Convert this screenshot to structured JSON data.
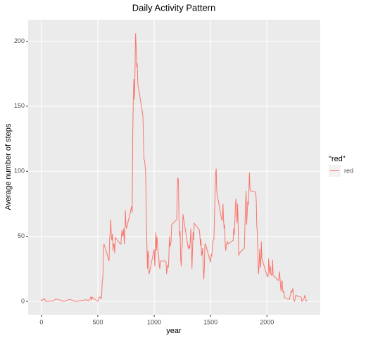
{
  "chart_data": {
    "type": "line",
    "title": "Daily Activity Pattern",
    "x_label": "year",
    "y_label": "Average number of steps",
    "legend_title": "\"red\"",
    "xlim": [
      -117.75,
      2472.75
    ],
    "xticks": [
      0,
      500,
      1000,
      1500,
      2000
    ],
    "ylim": [
      -10.3,
      216.5
    ],
    "yticks": [
      0,
      50,
      100,
      150,
      200
    ],
    "grid": true,
    "x": [
      0,
      5,
      25,
      40,
      100,
      130,
      200,
      250,
      300,
      320,
      400,
      420,
      440,
      445,
      450,
      500,
      510,
      520,
      530,
      535,
      540,
      545,
      550,
      555,
      600,
      605,
      610,
      615,
      620,
      625,
      630,
      635,
      640,
      645,
      650,
      655,
      700,
      705,
      710,
      715,
      720,
      725,
      730,
      735,
      740,
      745,
      750,
      755,
      800,
      805,
      810,
      815,
      820,
      825,
      830,
      835,
      840,
      845,
      850,
      855,
      900,
      905,
      910,
      915,
      920,
      925,
      930,
      935,
      940,
      945,
      950,
      955,
      1000,
      1005,
      1010,
      1015,
      1020,
      1025,
      1030,
      1035,
      1040,
      1045,
      1050,
      1055,
      1100,
      1105,
      1110,
      1115,
      1120,
      1125,
      1130,
      1135,
      1140,
      1145,
      1150,
      1155,
      1200,
      1205,
      1210,
      1215,
      1220,
      1225,
      1230,
      1235,
      1240,
      1245,
      1250,
      1255,
      1300,
      1305,
      1310,
      1315,
      1320,
      1325,
      1330,
      1335,
      1340,
      1345,
      1350,
      1355,
      1400,
      1405,
      1410,
      1415,
      1420,
      1425,
      1430,
      1435,
      1440,
      1445,
      1450,
      1455,
      1500,
      1505,
      1510,
      1515,
      1520,
      1525,
      1530,
      1535,
      1540,
      1545,
      1550,
      1555,
      1600,
      1605,
      1610,
      1615,
      1620,
      1625,
      1630,
      1635,
      1640,
      1645,
      1650,
      1655,
      1700,
      1705,
      1710,
      1715,
      1720,
      1725,
      1730,
      1735,
      1740,
      1745,
      1750,
      1755,
      1800,
      1805,
      1810,
      1815,
      1820,
      1825,
      1830,
      1835,
      1840,
      1845,
      1850,
      1855,
      1900,
      1905,
      1910,
      1915,
      1920,
      1925,
      1930,
      1935,
      1940,
      1945,
      1950,
      1955,
      2000,
      2005,
      2010,
      2015,
      2020,
      2025,
      2030,
      2035,
      2040,
      2045,
      2050,
      2055,
      2100,
      2105,
      2110,
      2115,
      2120,
      2125,
      2130,
      2135,
      2140,
      2145,
      2150,
      2155,
      2200,
      2205,
      2210,
      2215,
      2220,
      2225,
      2230,
      2235,
      2240,
      2245,
      2250,
      2255,
      2300,
      2305,
      2310,
      2315,
      2320,
      2325,
      2330,
      2335,
      2340,
      2345,
      2350,
      2355
    ],
    "series": [
      {
        "name": "red",
        "color": "#f8766d",
        "values": [
          1.7,
          0.3,
          2.1,
          0,
          0.3,
          1.8,
          0,
          1.5,
          0,
          0.2,
          1.2,
          0.3,
          3.5,
          0.8,
          3.1,
          0,
          3,
          3.3,
          2.1,
          6,
          16,
          18,
          39,
          44,
          31,
          49,
          53,
          63,
          50,
          47,
          52,
          39,
          44,
          44,
          37,
          49,
          44,
          44,
          51,
          55,
          50,
          51,
          56,
          44,
          52,
          70,
          58,
          56,
          73,
          68,
          130,
          157,
          171,
          155,
          177,
          206,
          196,
          180,
          183,
          167,
          143,
          124,
          109,
          108,
          104,
          96,
          66,
          45,
          25,
          39,
          35,
          21,
          40,
          27,
          42,
          53,
          39,
          50,
          44,
          37,
          35,
          28,
          25,
          31,
          31,
          30,
          21,
          25,
          28,
          26,
          33,
          50,
          42,
          44,
          46,
          59,
          63,
          88,
          95,
          93,
          63,
          50,
          54,
          32,
          27,
          38,
          45,
          67,
          42,
          40,
          43,
          41,
          46,
          56,
          42,
          25,
          40,
          53,
          47,
          60,
          55,
          51,
          43,
          48,
          35,
          37,
          41,
          27,
          17,
          26,
          44,
          44,
          30,
          36,
          35,
          39,
          46,
          47,
          48,
          65,
          83,
          98,
          102,
          84,
          62,
          64,
          75,
          63,
          56,
          59,
          43,
          39,
          44,
          45,
          46,
          44,
          47,
          56,
          51,
          61,
          73,
          79,
          69,
          60,
          75,
          57,
          35,
          37,
          41,
          58,
          74,
          85,
          59,
          68,
          77,
          74,
          85,
          99,
          86,
          85,
          84,
          78,
          58,
          53,
          36,
          21,
          27,
          40,
          30,
          26,
          46,
          33,
          20,
          19,
          19,
          33,
          27,
          21,
          27,
          21,
          20,
          21,
          32,
          20,
          16,
          17,
          23,
          19,
          12,
          8,
          15,
          16,
          8,
          7,
          8,
          3,
          1.5,
          4,
          5,
          8,
          7,
          8,
          10,
          2,
          0.3,
          0.1,
          1.6,
          4.6,
          3.3,
          2.8,
          0,
          0.8,
          1,
          1.6,
          2.6,
          4.7,
          3.3,
          0.6,
          0.2,
          1.1
        ]
      }
    ]
  }
}
